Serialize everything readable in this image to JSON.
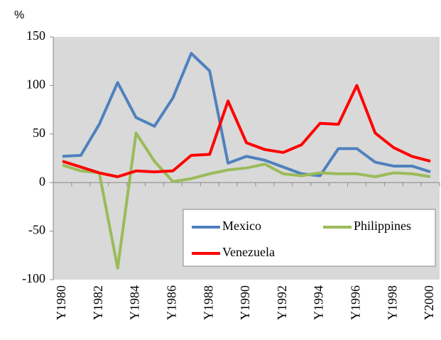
{
  "chart_data": {
    "type": "line",
    "y_label": "%",
    "categories": [
      "Y1980",
      null,
      "Y1982",
      null,
      "Y1984",
      null,
      "Y1986",
      null,
      "Y1988",
      null,
      "Y1990",
      null,
      "Y1992",
      null,
      "Y1994",
      null,
      "Y1996",
      null,
      "Y1998",
      null,
      "Y2000"
    ],
    "series": [
      {
        "name": "Mexico",
        "color": "#4f81bd",
        "values": [
          27,
          28,
          60,
          103,
          67,
          58,
          87,
          133,
          115,
          20,
          27,
          23,
          16,
          9,
          7,
          35,
          35,
          21,
          17,
          17,
          11
        ]
      },
      {
        "name": "Philippines",
        "color": "#9bbb59",
        "values": [
          18,
          12,
          10,
          -88,
          51,
          22,
          1,
          4,
          9,
          13,
          15,
          19,
          9,
          7,
          10,
          9,
          9,
          6,
          10,
          9,
          6
        ]
      },
      {
        "name": "Venezuela",
        "color": "#ff0000",
        "values": [
          22,
          16,
          10,
          6,
          12,
          11,
          12,
          28,
          29,
          84,
          41,
          34,
          31,
          39,
          61,
          60,
          100,
          51,
          36,
          27,
          22
        ]
      }
    ],
    "ylim": [
      -100,
      150
    ],
    "yticks": [
      -100,
      -50,
      0,
      50,
      100,
      150
    ],
    "grid": false,
    "background": "#d9d9d9"
  }
}
